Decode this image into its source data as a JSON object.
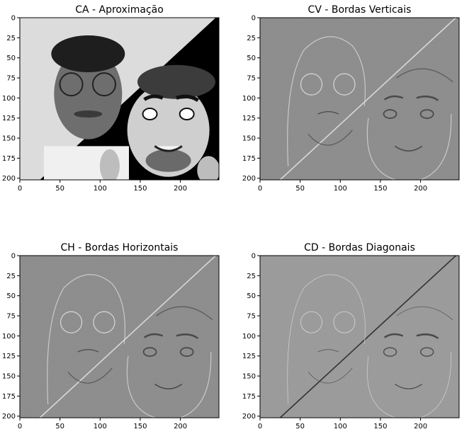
{
  "chart_data": [
    {
      "type": "image",
      "title": "CA - Aproximação",
      "variant": "approx",
      "xlim": [
        0,
        248
      ],
      "ylim": [
        0,
        202
      ],
      "xticks": [
        0,
        50,
        100,
        150,
        200
      ],
      "yticks": [
        0,
        25,
        50,
        75,
        100,
        125,
        150,
        175,
        200
      ],
      "grid": false
    },
    {
      "type": "image",
      "title": "CV - Bordas Verticais",
      "variant": "vertical",
      "xlim": [
        0,
        248
      ],
      "ylim": [
        0,
        202
      ],
      "xticks": [
        0,
        50,
        100,
        150,
        200
      ],
      "yticks": [
        0,
        25,
        50,
        75,
        100,
        125,
        150,
        175,
        200
      ],
      "grid": false
    },
    {
      "type": "image",
      "title": "CH - Bordas Horizontais",
      "variant": "horizontal",
      "xlim": [
        0,
        248
      ],
      "ylim": [
        0,
        202
      ],
      "xticks": [
        0,
        50,
        100,
        150,
        200
      ],
      "yticks": [
        0,
        25,
        50,
        75,
        100,
        125,
        150,
        175,
        200
      ],
      "grid": false
    },
    {
      "type": "image",
      "title": "CD - Bordas Diagonais",
      "variant": "diagonal",
      "xlim": [
        0,
        248
      ],
      "ylim": [
        0,
        202
      ],
      "xticks": [
        0,
        50,
        100,
        150,
        200
      ],
      "yticks": [
        0,
        25,
        50,
        75,
        100,
        125,
        150,
        175,
        200
      ],
      "grid": false
    }
  ],
  "colors": {
    "frame": "#000000",
    "approx_light_bg": "#dcdcdc",
    "approx_dark": "#000000",
    "edge_gray": "#8c8c8c",
    "diag_gray": "#9a9a9a"
  }
}
